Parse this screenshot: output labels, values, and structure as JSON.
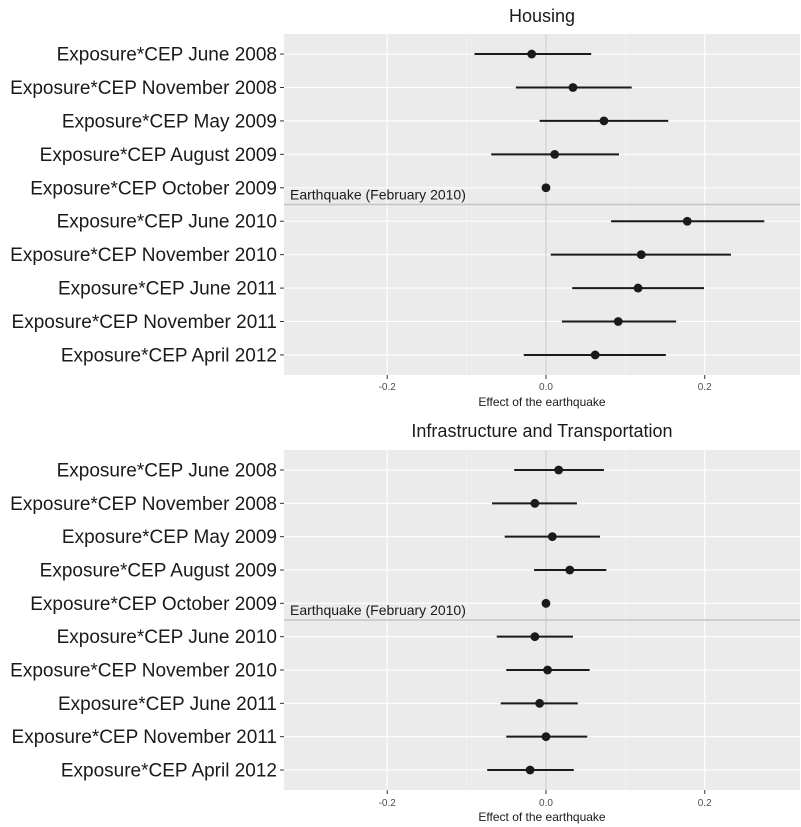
{
  "chart_data": [
    {
      "type": "scatter",
      "title": "Housing",
      "xlabel": "Effect of the earthquake",
      "ylabel": "",
      "xlim": [
        -0.33,
        0.32
      ],
      "xticks": [
        -0.2,
        0.0,
        0.2
      ],
      "xtick_labels": [
        "-0.2",
        "0.0",
        "0.2"
      ],
      "grid": true,
      "annotation": "Earthquake (February 2010)",
      "event_after_index": 4,
      "categories": [
        "Exposure*CEP June 2008",
        "Exposure*CEP November 2008",
        "Exposure*CEP May 2009",
        "Exposure*CEP August 2009",
        "Exposure*CEP October 2009",
        "Exposure*CEP June 2010",
        "Exposure*CEP November 2010",
        "Exposure*CEP June 2011",
        "Exposure*CEP November 2011",
        "Exposure*CEP April 2012"
      ],
      "estimates": [
        -0.018,
        0.034,
        0.073,
        0.011,
        0.0,
        0.178,
        0.12,
        0.116,
        0.091,
        0.062
      ],
      "ci_low": [
        -0.09,
        -0.038,
        -0.008,
        -0.069,
        0.0,
        0.082,
        0.006,
        0.033,
        0.02,
        -0.028
      ],
      "ci_high": [
        0.057,
        0.108,
        0.154,
        0.092,
        0.0,
        0.275,
        0.233,
        0.199,
        0.164,
        0.151
      ]
    },
    {
      "type": "scatter",
      "title": "Infrastructure and Transportation",
      "xlabel": "Effect of the earthquake",
      "ylabel": "",
      "xlim": [
        -0.33,
        0.32
      ],
      "xticks": [
        -0.2,
        0.0,
        0.2
      ],
      "xtick_labels": [
        "-0.2",
        "0.0",
        "0.2"
      ],
      "grid": true,
      "annotation": "Earthquake (February 2010)",
      "event_after_index": 4,
      "categories": [
        "Exposure*CEP June 2008",
        "Exposure*CEP November 2008",
        "Exposure*CEP May 2009",
        "Exposure*CEP August 2009",
        "Exposure*CEP October 2009",
        "Exposure*CEP June 2010",
        "Exposure*CEP November 2010",
        "Exposure*CEP June 2011",
        "Exposure*CEP November 2011",
        "Exposure*CEP April 2012"
      ],
      "estimates": [
        0.016,
        -0.014,
        0.008,
        0.03,
        0.0,
        -0.014,
        0.002,
        -0.008,
        0.0,
        -0.02
      ],
      "ci_low": [
        -0.04,
        -0.068,
        -0.052,
        -0.015,
        0.0,
        -0.062,
        -0.05,
        -0.057,
        -0.05,
        -0.074
      ],
      "ci_high": [
        0.073,
        0.039,
        0.068,
        0.076,
        0.0,
        0.034,
        0.055,
        0.04,
        0.052,
        0.035
      ]
    }
  ]
}
